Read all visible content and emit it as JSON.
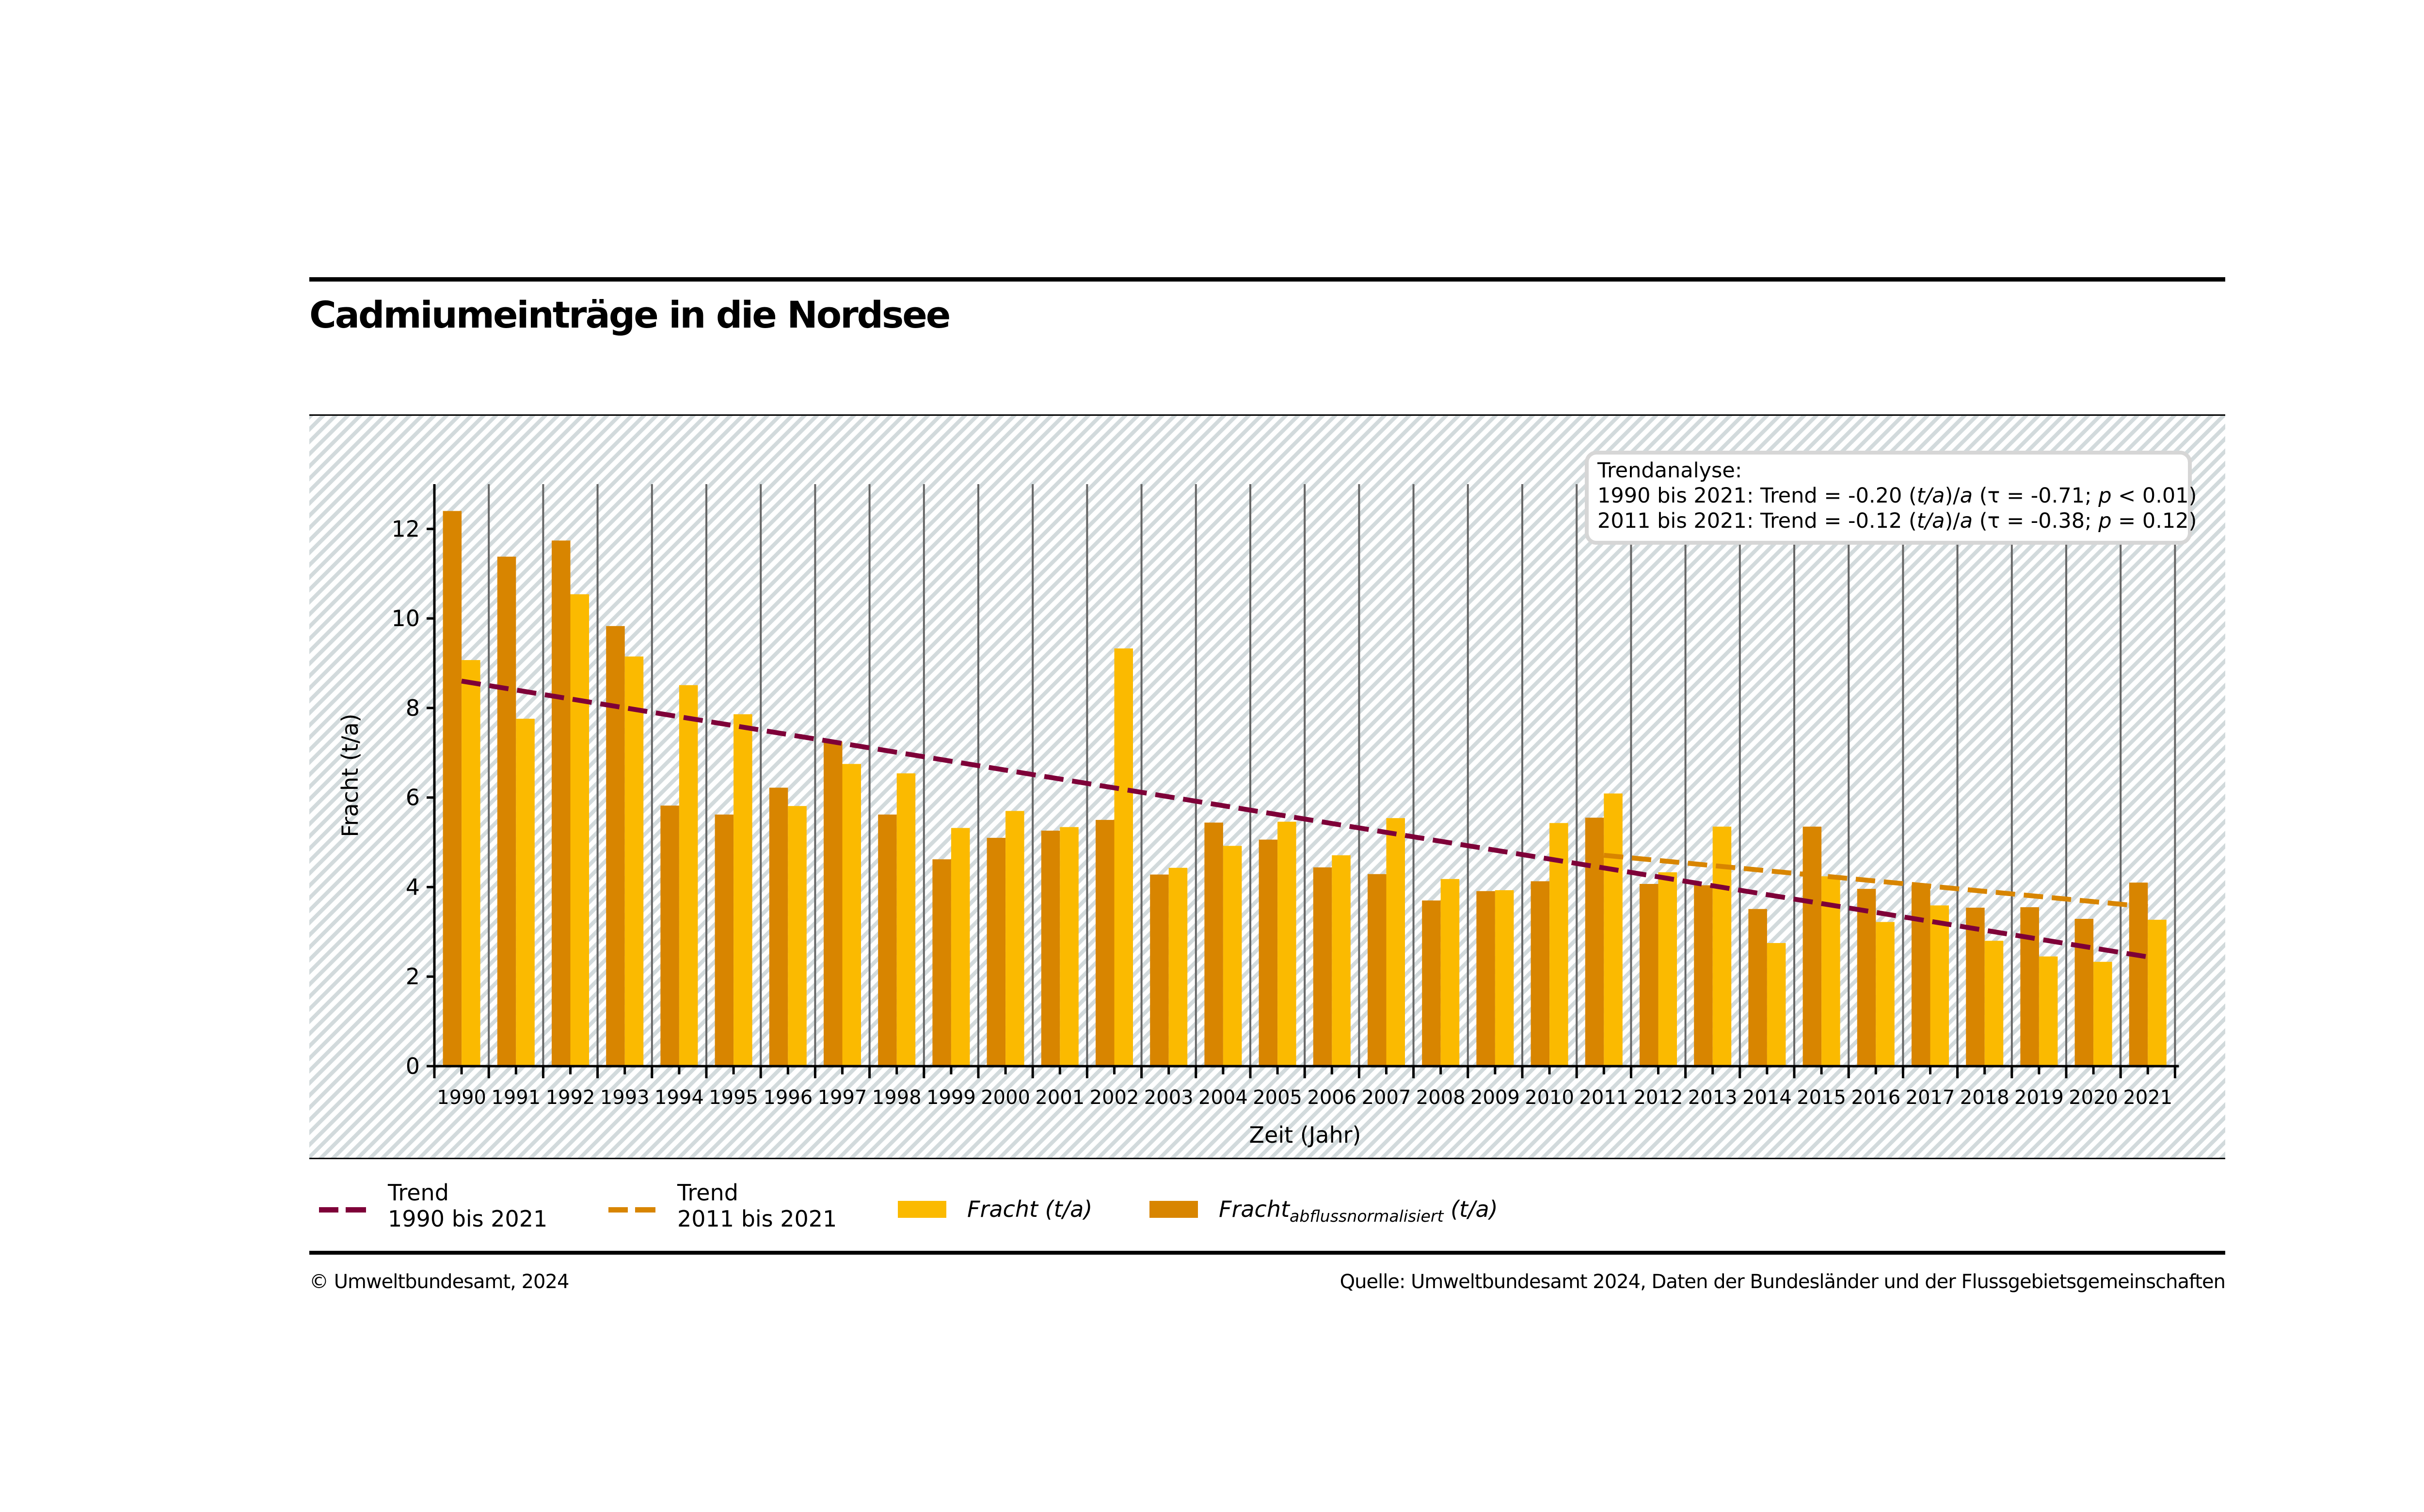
{
  "title": "Cadmiumeinträge in die Nordsee",
  "colors": {
    "fracht": "#FBBA00",
    "fracht_normalized": "#D88500",
    "trend_long": "#7E0038",
    "trend_short": "#D88500",
    "hatch": "#D2DADC",
    "gridline": "#666666"
  },
  "chart_data": {
    "type": "bar",
    "title": "Cadmiumeinträge in die Nordsee",
    "xlabel": "Zeit (Jahr)",
    "ylabel": "Fracht (t/a)",
    "ylim": [
      0,
      13
    ],
    "yticks": [
      0,
      2,
      4,
      6,
      8,
      10,
      12
    ],
    "grid": "vertical lines between years",
    "categories": [
      "1990",
      "1991",
      "1992",
      "1993",
      "1994",
      "1995",
      "1996",
      "1997",
      "1998",
      "1999",
      "2000",
      "2001",
      "2002",
      "2003",
      "2004",
      "2005",
      "2006",
      "2007",
      "2008",
      "2009",
      "2010",
      "2011",
      "2012",
      "2013",
      "2014",
      "2015",
      "2016",
      "2017",
      "2018",
      "2019",
      "2020",
      "2021"
    ],
    "series": [
      {
        "name": "Fracht_abflussnormalisiert (t/a)",
        "key": "fracht_normalized",
        "values": [
          12.4,
          11.38,
          11.74,
          9.83,
          5.82,
          5.62,
          6.22,
          7.25,
          5.62,
          4.62,
          5.1,
          5.26,
          5.5,
          4.28,
          5.44,
          5.06,
          4.44,
          4.29,
          3.7,
          3.91,
          4.13,
          5.55,
          4.07,
          4.04,
          3.51,
          5.35,
          3.96,
          4.04,
          3.54,
          3.55,
          3.29,
          4.1
        ]
      },
      {
        "name": "Fracht (t/a)",
        "key": "fracht",
        "values": [
          9.07,
          7.76,
          10.54,
          9.15,
          8.51,
          7.86,
          5.81,
          6.75,
          6.54,
          5.32,
          5.7,
          5.34,
          9.33,
          4.43,
          4.92,
          5.46,
          4.71,
          5.54,
          4.18,
          3.93,
          5.43,
          6.09,
          4.33,
          5.35,
          2.75,
          4.24,
          3.22,
          3.59,
          2.8,
          2.45,
          2.33,
          3.27
        ]
      }
    ],
    "trend_lines": [
      {
        "name": "Trend 1990 bis 2021",
        "key": "trend_long",
        "x_start": "1990",
        "x_end": "2021",
        "y_start": 8.6,
        "y_end": 2.44,
        "style": "dashed"
      },
      {
        "name": "Trend 2011 bis 2021",
        "key": "trend_short",
        "x_start": "2011",
        "x_end": "2021",
        "y_start": 4.71,
        "y_end": 3.56,
        "style": "dashed"
      }
    ],
    "annotation": {
      "heading": "Trendanalyse:",
      "lines": [
        "1990 bis 2021: Trend = -0.20 (t/a)/a (τ = -0.71; p < 0.01)",
        "2011 bis 2021: Trend = -0.12 (t/a)/a (τ = -0.38; p = 0.12)"
      ],
      "placement": "top-right"
    },
    "legend": {
      "placement": "below",
      "items": [
        {
          "key": "trend_long",
          "kind": "dash",
          "line1": "Trend",
          "line2": "1990 bis 2021"
        },
        {
          "key": "trend_short",
          "kind": "dash",
          "line1": "Trend",
          "line2": "2011 bis 2021"
        },
        {
          "key": "fracht",
          "kind": "swatch",
          "label": "Fracht",
          "unit": "(t/a)"
        },
        {
          "key": "fracht_normalized",
          "kind": "swatch",
          "label": "Fracht",
          "subscript": "abflussnormalisiert",
          "unit": "(t/a)"
        }
      ]
    }
  },
  "footer": {
    "copyright": "© Umweltbundesamt, 2024",
    "source": "Quelle: Umweltbundesamt 2024, Daten der Bundesländer und der Flussgebietsgemeinschaften"
  }
}
